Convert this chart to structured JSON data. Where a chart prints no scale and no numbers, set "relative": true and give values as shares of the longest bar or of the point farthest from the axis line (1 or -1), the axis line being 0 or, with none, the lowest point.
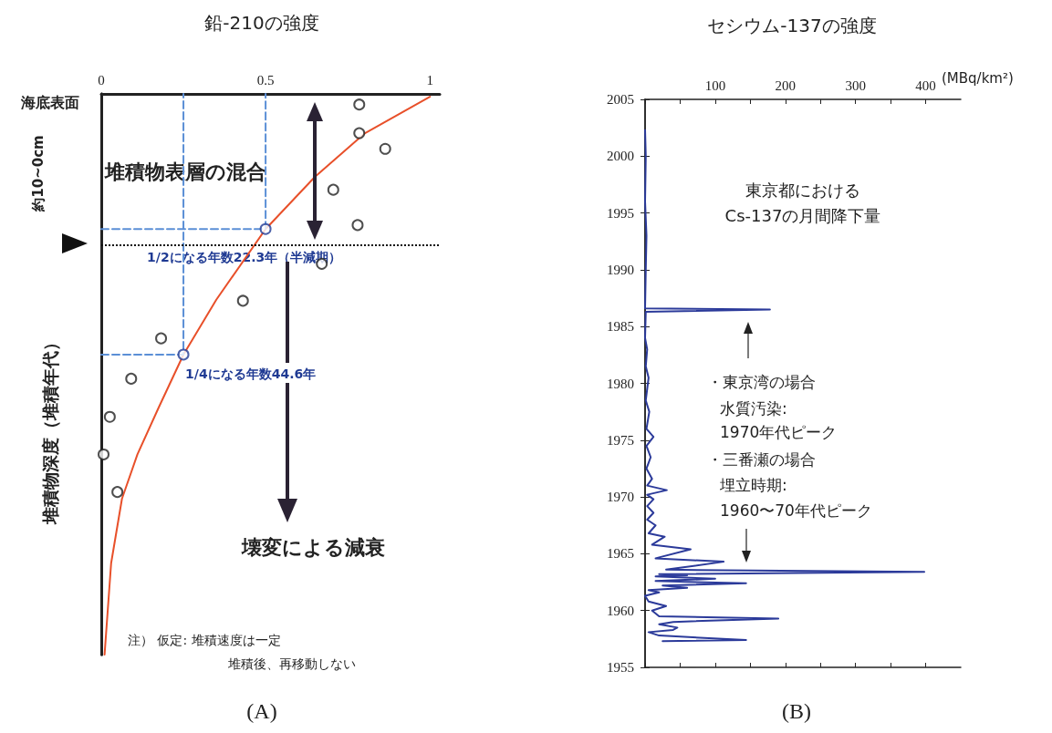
{
  "chart_data": [
    {
      "type": "line",
      "title": "鉛-210の強度",
      "ylabel": "堆積物深度（堆積年代）",
      "relative": true,
      "xlim": [
        0,
        1.03
      ],
      "xticks": [
        0,
        0.5,
        1
      ],
      "tick_labels": "x",
      "grid": false,
      "series": [
        {
          "color": "#e8502a",
          "marker": "none",
          "x": [
            1,
            0.8,
            0.65,
            0.5,
            0.35,
            0.25,
            0.175,
            0.11,
            0.063,
            0.03,
            0.01
          ],
          "values": [
            -0.005,
            -0.071,
            -0.148,
            -0.241,
            -0.367,
            -0.465,
            -0.559,
            -0.643,
            -0.722,
            -0.837,
            -1
          ]
        },
        {
          "color": "#5b8fd6",
          "marker": "none",
          "line_style": "dashed",
          "x": [
            0,
            0.5,
            0.5
          ],
          "values": [
            -0.241,
            -0.241,
            0
          ]
        },
        {
          "color": "#5b8fd6",
          "marker": "none",
          "line_style": "dashed",
          "x": [
            0,
            0.25,
            0.25
          ],
          "values": [
            -0.465,
            -0.465,
            0
          ]
        },
        {
          "type": "scatter",
          "color": "#222222",
          "marker": "circle",
          "x": [
            0.785,
            0.785,
            0.864,
            0.706,
            0.78,
            0.671,
            0.431,
            0.182,
            0.091,
            0.026,
            0.007,
            0.049
          ],
          "values": [
            -0.019,
            -0.07,
            -0.098,
            -0.171,
            -0.234,
            -0.303,
            -0.369,
            -0.436,
            -0.508,
            -0.576,
            -0.643,
            -0.71
          ]
        },
        {
          "type": "scatter",
          "color": "#1f3a93",
          "marker": "circle",
          "x": [
            0.5,
            0.25
          ],
          "values": [
            -0.241,
            -0.465
          ]
        }
      ],
      "ref_lines": [
        {
          "axis": "y",
          "value": -0.266,
          "color": "#111111",
          "line_style": "dotted"
        }
      ],
      "annotations": [
        "海底表面",
        "約10~0cm",
        "堆積物表層の混合",
        {
          "text": "1/2になる年数22.3年（半減期）",
          "x": 0.5,
          "y": -0.241
        },
        {
          "text": "1/4になる年数44.6年",
          "x": 0.25,
          "y": -0.465
        },
        "壊変による減衰",
        "注） 仮定: 堆積速度は一定",
        "堆積後、再移動しない",
        "(A)"
      ]
    },
    {
      "type": "line",
      "title": "セシウム-137の強度",
      "xlabel": "(MBq/km²)",
      "xlim": [
        0,
        450
      ],
      "xticks": [
        {
          "value": 0,
          "label": null
        },
        {
          "value": 50,
          "label": null
        },
        100,
        {
          "value": 150,
          "label": null
        },
        200,
        {
          "value": 250,
          "label": null
        },
        300,
        {
          "value": 350,
          "label": null
        },
        400
      ],
      "ylim": [
        1955,
        2005
      ],
      "yticks": [
        1955,
        1960,
        1965,
        1970,
        1975,
        1980,
        1985,
        1990,
        1995,
        2000,
        2005
      ],
      "grid": false,
      "series": [
        {
          "color": "#2b3a9a",
          "marker": "none",
          "x": [
            25,
            144,
            20,
            5,
            40,
            46,
            20,
            40,
            190,
            20,
            10,
            30,
            5,
            0,
            20,
            5,
            60,
            25,
            144,
            15,
            100,
            15,
            60,
            20,
            398,
            30,
            112,
            15,
            65,
            10,
            28,
            5,
            15,
            3,
            12,
            3,
            12,
            3,
            31,
            3,
            10,
            2,
            8,
            2,
            12,
            2,
            6,
            1,
            5,
            1,
            3,
            0,
            1,
            178,
            0,
            1,
            2,
            0,
            1,
            0
          ],
          "values": [
            1957.3,
            1957.4,
            1957.8,
            1958.1,
            1958.3,
            1958.5,
            1958.8,
            1959.0,
            1959.3,
            1959.5,
            1960.0,
            1960.4,
            1960.8,
            1961.3,
            1961.6,
            1961.8,
            1962.0,
            1962.2,
            1962.4,
            1962.6,
            1962.8,
            1963.0,
            1963.1,
            1963.2,
            1963.4,
            1963.6,
            1964.3,
            1964.6,
            1965.4,
            1965.8,
            1966.5,
            1966.8,
            1967.5,
            1968,
            1968.6,
            1969.2,
            1969.8,
            1970.2,
            1970.6,
            1971,
            1971.6,
            1972.5,
            1973.5,
            1974.5,
            1975.3,
            1976,
            1977.5,
            1978.5,
            1980.5,
            1981.5,
            1983,
            1984,
            1986.3,
            1986.5,
            1986.6,
            1990,
            1993,
            1996,
            2000,
            2002.3
          ]
        }
      ],
      "annotations": [
        "東京都における",
        "Cs-137の月間降下量",
        "・東京湾の場合",
        "水質汚染:",
        "1970年代ピーク",
        "・三番瀬の場合",
        "埋立時期:",
        "1960〜70年代ピーク",
        "(B)"
      ]
    }
  ]
}
